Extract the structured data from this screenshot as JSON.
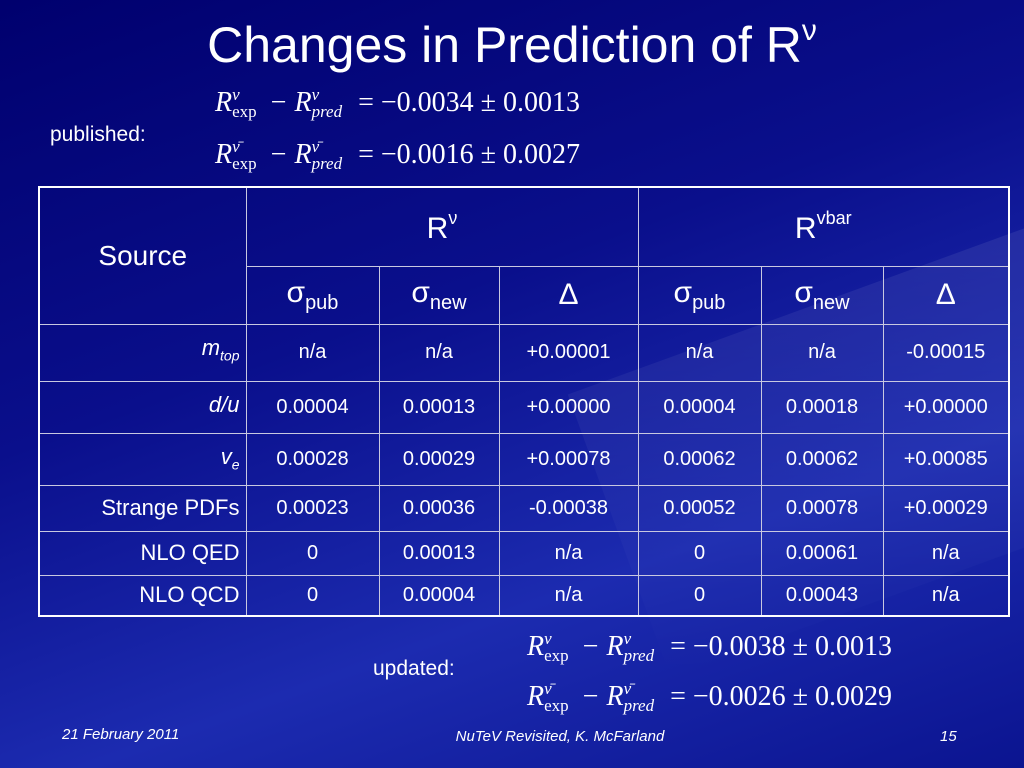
{
  "title": {
    "text": "Changes in Prediction of R",
    "sup": "ν"
  },
  "published": {
    "label": "published:",
    "equations": [
      {
        "lhs_a": "R",
        "sup_a": "ν",
        "sub_a": "exp",
        "op": "−",
        "lhs_b": "R",
        "sup_b": "ν",
        "sub_b": "pred",
        "rhs": "= −0.0034 ± 0.0013"
      },
      {
        "lhs_a": "R",
        "sup_a": "ν̄",
        "sub_a": "exp",
        "op": "−",
        "lhs_b": "R",
        "sup_b": "ν̄",
        "sub_b": "pred",
        "rhs": "= −0.0016 ± 0.0027"
      }
    ]
  },
  "table": {
    "source_header": "Source",
    "groups": [
      {
        "text": "R",
        "sup": "ν"
      },
      {
        "text": "R",
        "sup": "vbar"
      }
    ],
    "subheaders": [
      {
        "text": "σ",
        "sub": "pub"
      },
      {
        "text": "σ",
        "sub": "new"
      },
      {
        "text": "Δ"
      },
      {
        "text": "σ",
        "sub": "pub"
      },
      {
        "text": "σ",
        "sub": "new"
      },
      {
        "text": "Δ"
      }
    ],
    "rows": [
      {
        "label": {
          "text": "m",
          "sub": "top",
          "italic": true
        },
        "cells": [
          "n/a",
          "n/a",
          "+0.00001",
          "n/a",
          "n/a",
          "-0.00015"
        ]
      },
      {
        "label": {
          "text": "d/u",
          "italic": true
        },
        "cells": [
          "0.00004",
          "0.00013",
          "+0.00000",
          "0.00004",
          "0.00018",
          "+0.00000"
        ]
      },
      {
        "label": {
          "text": "v",
          "sub": "e",
          "italic": true
        },
        "cells": [
          "0.00028",
          "0.00029",
          "+0.00078",
          "0.00062",
          "0.00062",
          "+0.00085"
        ]
      },
      {
        "label": {
          "text": "Strange PDFs"
        },
        "cells": [
          "0.00023",
          "0.00036",
          "-0.00038",
          "0.00052",
          "0.00078",
          "+0.00029"
        ]
      },
      {
        "label": {
          "text": "NLO QED"
        },
        "cells": [
          "0",
          "0.00013",
          "n/a",
          "0",
          "0.00061",
          "n/a"
        ]
      },
      {
        "label": {
          "text": "NLO QCD"
        },
        "cells": [
          "0",
          "0.00004",
          "n/a",
          "0",
          "0.00043",
          "n/a"
        ]
      }
    ]
  },
  "updated": {
    "label": "updated:",
    "equations": [
      {
        "lhs_a": "R",
        "sup_a": "ν",
        "sub_a": "exp",
        "op": "−",
        "lhs_b": "R",
        "sup_b": "ν",
        "sub_b": "pred",
        "rhs": "= −0.0038 ± 0.0013"
      },
      {
        "lhs_a": "R",
        "sup_a": "ν̄",
        "sub_a": "exp",
        "op": "−",
        "lhs_b": "R",
        "sup_b": "ν̄",
        "sub_b": "pred",
        "rhs": "= −0.0026 ± 0.0029"
      }
    ]
  },
  "footer": {
    "date": "21 February 2011",
    "center": "NuTeV Revisited, K. McFarland",
    "page": "15"
  }
}
